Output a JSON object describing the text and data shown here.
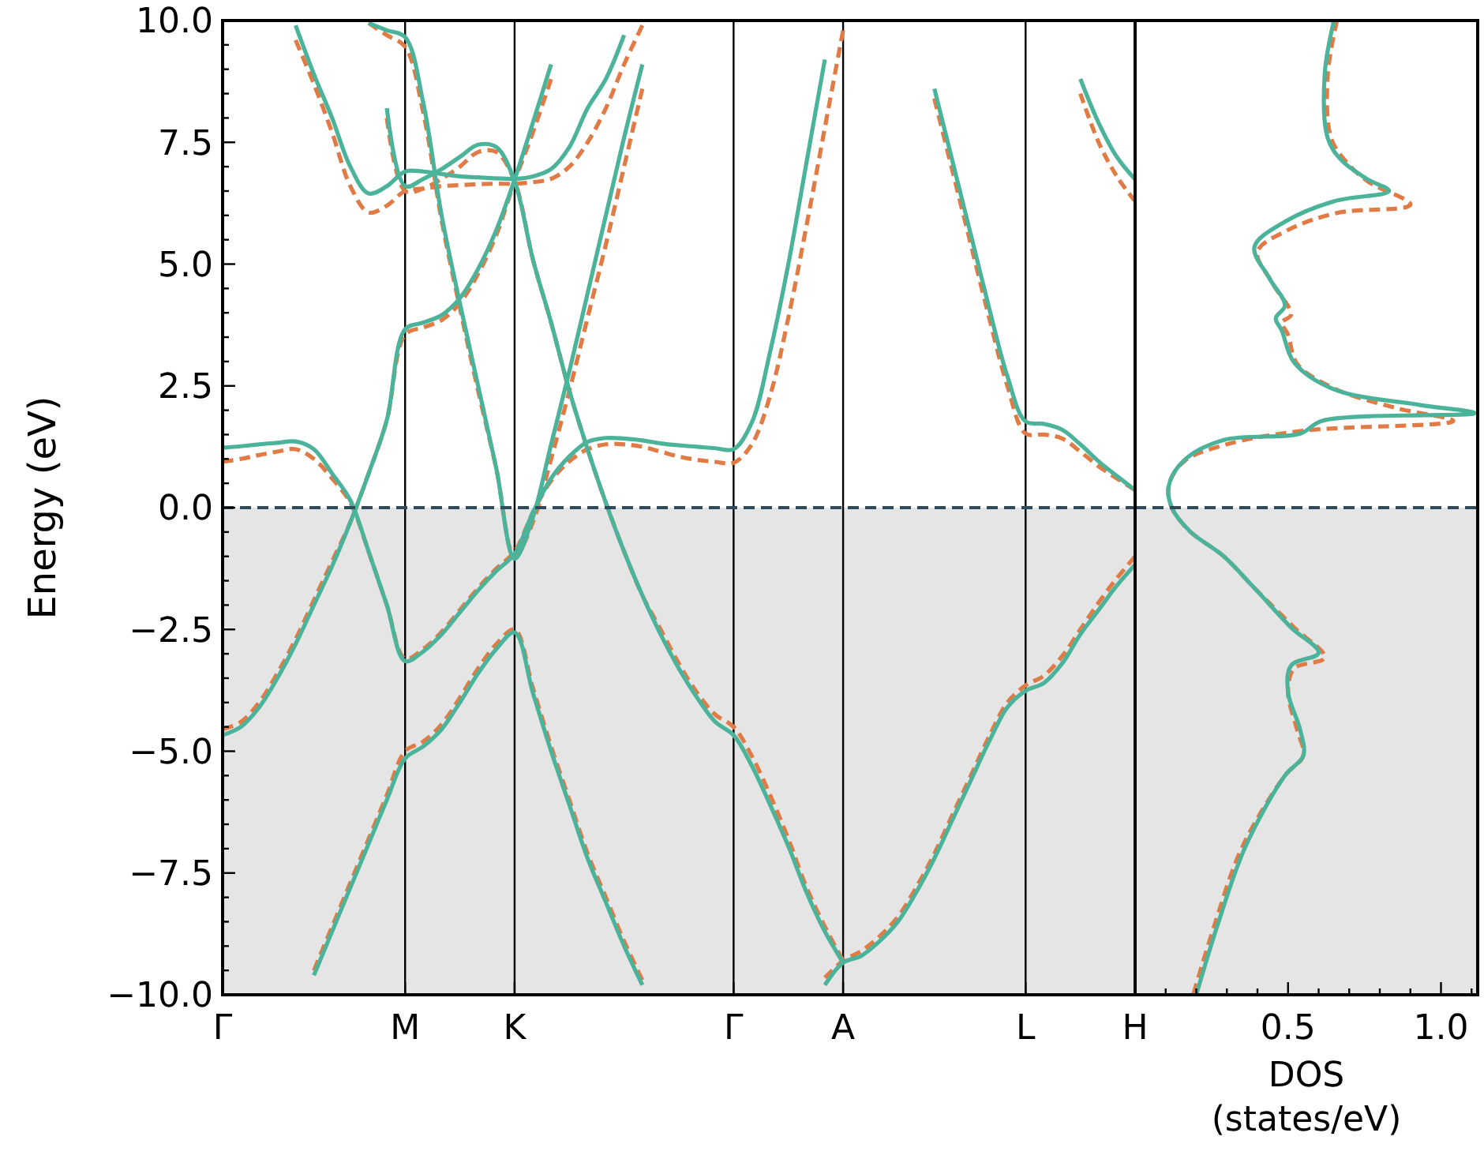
{
  "chart_data": [
    {
      "type": "line",
      "ylabel": "Energy (eV)",
      "ylim": [
        -10,
        10
      ],
      "categories": [
        "Γ",
        null,
        null,
        null,
        null,
        null,
        null,
        null,
        null,
        null,
        "M",
        null,
        null,
        null,
        null,
        null,
        "K",
        null,
        null,
        null,
        null,
        null,
        null,
        null,
        null,
        null,
        null,
        null,
        "Γ",
        null,
        null,
        null,
        null,
        null,
        "A",
        null,
        null,
        null,
        null,
        null,
        null,
        null,
        null,
        null,
        "L",
        null,
        null,
        null,
        null,
        null,
        "H"
      ],
      "yticks": [
        {
          "value": -10,
          "label": "−10.0"
        },
        {
          "value": -9.5,
          "label": null
        },
        {
          "value": -9,
          "label": null
        },
        {
          "value": -8.5,
          "label": null
        },
        {
          "value": -8,
          "label": null
        },
        {
          "value": -7.5,
          "label": "−7.5"
        },
        {
          "value": -7,
          "label": null
        },
        {
          "value": -6.5,
          "label": null
        },
        {
          "value": -6,
          "label": null
        },
        {
          "value": -5.5,
          "label": null
        },
        {
          "value": -5,
          "label": "−5.0"
        },
        {
          "value": -4.5,
          "label": null
        },
        {
          "value": -4,
          "label": null
        },
        {
          "value": -3.5,
          "label": null
        },
        {
          "value": -3,
          "label": null
        },
        {
          "value": -2.5,
          "label": "−2.5"
        },
        {
          "value": -2,
          "label": null
        },
        {
          "value": -1.5,
          "label": null
        },
        {
          "value": -1,
          "label": null
        },
        {
          "value": -0.5,
          "label": null
        },
        {
          "value": 0,
          "label": "0.0"
        },
        {
          "value": 0.5,
          "label": null
        },
        {
          "value": 1,
          "label": null
        },
        {
          "value": 1.5,
          "label": null
        },
        {
          "value": 2,
          "label": null
        },
        {
          "value": 2.5,
          "label": "2.5"
        },
        {
          "value": 3,
          "label": null
        },
        {
          "value": 3.5,
          "label": null
        },
        {
          "value": 4,
          "label": null
        },
        {
          "value": 4.5,
          "label": null
        },
        {
          "value": 5,
          "label": "5.0"
        },
        {
          "value": 5.5,
          "label": null
        },
        {
          "value": 6,
          "label": null
        },
        {
          "value": 6.5,
          "label": null
        },
        {
          "value": 7,
          "label": null
        },
        {
          "value": 7.5,
          "label": "7.5"
        },
        {
          "value": 8,
          "label": null
        },
        {
          "value": 8.5,
          "label": null
        },
        {
          "value": 9,
          "label": null
        },
        {
          "value": 9.5,
          "label": null
        },
        {
          "value": 10,
          "label": "10.0"
        }
      ],
      "grid": "x",
      "ref_lines": [
        {
          "axis": "y",
          "value": 0,
          "color": "#2e4a5c",
          "line_style": "dashed"
        }
      ],
      "bands": [
        {
          "axis": "y",
          "from": -10,
          "to": 0,
          "color": "#e5e5e5"
        }
      ],
      "series": [
        {
          "color": "#e07b45",
          "line_style": "dashed",
          "values": [
            -4.55,
            -4.4,
            -4.0,
            -3.4,
            -2.7,
            -1.9,
            -1.1,
            -0.3,
            0.7,
            1.8,
            3.55,
            3.7,
            3.85,
            4.2,
            4.8,
            5.6,
            6.7,
            7.7,
            8.8,
            null,
            null,
            null,
            null,
            null,
            null,
            null,
            null,
            null,
            null,
            null,
            null,
            null,
            null,
            null,
            null,
            null,
            null,
            null,
            null,
            null,
            null,
            null,
            null,
            null,
            null,
            null,
            null,
            null,
            null,
            null,
            null
          ]
        },
        {
          "color": "#e07b45",
          "line_style": "dashed",
          "values": [
            0.94,
            1.0,
            1.08,
            1.15,
            1.2,
            1.0,
            0.6,
            0.1,
            -0.9,
            -2.0,
            -3.1,
            -2.9,
            -2.55,
            -2.1,
            -1.65,
            -1.25,
            -0.9,
            -0.1,
            0.55,
            0.95,
            1.2,
            1.3,
            1.3,
            1.25,
            1.15,
            1.05,
            0.98,
            0.94,
            0.92,
            1.3,
            2.3,
            3.9,
            5.8,
            7.8,
            9.8,
            null,
            null,
            null,
            null,
            null,
            null,
            null,
            null,
            null,
            null,
            null,
            null,
            null,
            null,
            null,
            null
          ]
        },
        {
          "color": "#e07b45",
          "line_style": "dashed",
          "values": [
            null,
            null,
            null,
            null,
            9.6,
            8.7,
            7.7,
            6.6,
            6.06,
            6.2,
            6.5,
            6.55,
            6.6,
            6.62,
            6.64,
            6.65,
            6.65,
            6.68,
            6.75,
            7.0,
            7.5,
            8.2,
            9.1,
            9.9,
            null,
            null,
            null,
            null,
            null,
            null,
            null,
            null,
            null,
            null,
            null,
            null,
            null,
            null,
            null,
            null,
            null,
            null,
            null,
            null,
            null,
            null,
            null,
            null,
            null,
            null,
            null
          ]
        },
        {
          "color": "#e07b45",
          "line_style": "dashed",
          "values": [
            null,
            null,
            null,
            null,
            null,
            null,
            null,
            null,
            9.95,
            9.7,
            9.46,
            8.1,
            5.9,
            4.1,
            2.4,
            0.8,
            -1.0,
            -0.3,
            1.0,
            2.4,
            3.9,
            5.4,
            7.0,
            8.6,
            null,
            null,
            null,
            null,
            null,
            null,
            null,
            null,
            null,
            null,
            null,
            null,
            null,
            null,
            null,
            null,
            null,
            null,
            null,
            null,
            null,
            null,
            null,
            null,
            null,
            null,
            null
          ]
        },
        {
          "color": "#e07b45",
          "line_style": "dashed",
          "values": [
            null,
            null,
            null,
            null,
            null,
            null,
            null,
            null,
            null,
            8.0,
            6.5,
            6.55,
            6.75,
            7.0,
            7.3,
            7.3,
            6.7,
            5.1,
            3.8,
            2.4,
            1.2,
            0.1,
            -0.9,
            -1.8,
            -2.5,
            -3.2,
            -3.8,
            -4.25,
            -4.5,
            -5.1,
            -5.9,
            -6.8,
            -7.8,
            -8.6,
            -9.3,
            null,
            null,
            null,
            null,
            null,
            null,
            null,
            null,
            null,
            null,
            null,
            null,
            null,
            null,
            null,
            null
          ]
        },
        {
          "color": "#e07b45",
          "line_style": "dashed",
          "values": [
            null,
            null,
            null,
            null,
            null,
            -9.5,
            -8.6,
            -7.7,
            -6.8,
            -5.9,
            -5.0,
            -4.8,
            -4.45,
            -3.9,
            -3.3,
            -2.8,
            -2.5,
            -3.7,
            -4.9,
            -6.0,
            -7.1,
            -8.0,
            -8.9,
            -9.7,
            null,
            null,
            null,
            null,
            null,
            null,
            null,
            null,
            null,
            null,
            null,
            null,
            null,
            null,
            null,
            null,
            null,
            null,
            null,
            null,
            null,
            null,
            null,
            null,
            null,
            null,
            null
          ]
        },
        {
          "color": "#e07b45",
          "line_style": "dashed",
          "values": [
            null,
            null,
            null,
            null,
            null,
            null,
            null,
            null,
            null,
            null,
            null,
            null,
            null,
            null,
            null,
            null,
            null,
            null,
            null,
            null,
            null,
            null,
            null,
            null,
            null,
            null,
            null,
            null,
            null,
            null,
            null,
            null,
            null,
            -9.65,
            -9.3,
            -9.1,
            -8.8,
            -8.4,
            -7.8,
            -7.1,
            -6.3,
            -5.5,
            -4.7,
            -4.0,
            -3.65,
            -3.45,
            -3.05,
            -2.5,
            -1.95,
            -1.45,
            -1.0
          ]
        },
        {
          "color": "#e07b45",
          "line_style": "dashed",
          "values": [
            null,
            null,
            null,
            null,
            null,
            null,
            null,
            null,
            null,
            null,
            null,
            null,
            null,
            null,
            null,
            null,
            null,
            null,
            null,
            null,
            null,
            null,
            null,
            null,
            null,
            null,
            null,
            null,
            null,
            null,
            null,
            null,
            null,
            null,
            null,
            null,
            null,
            null,
            null,
            8.4,
            6.9,
            5.4,
            3.9,
            2.5,
            1.52,
            1.5,
            1.42,
            1.15,
            0.85,
            0.6,
            0.36
          ]
        },
        {
          "color": "#e07b45",
          "line_style": "dashed",
          "values": [
            null,
            null,
            null,
            null,
            null,
            null,
            null,
            null,
            null,
            null,
            null,
            null,
            null,
            null,
            null,
            null,
            null,
            null,
            null,
            null,
            null,
            null,
            null,
            null,
            null,
            null,
            null,
            null,
            null,
            null,
            null,
            null,
            null,
            null,
            null,
            null,
            null,
            null,
            null,
            null,
            null,
            null,
            null,
            null,
            null,
            null,
            null,
            8.5,
            7.5,
            6.8,
            6.29
          ]
        },
        {
          "color": "#4cb39b",
          "line_style": "solid",
          "values": [
            -4.67,
            -4.5,
            -4.1,
            -3.5,
            -2.8,
            -2.0,
            -1.2,
            -0.3,
            0.7,
            1.8,
            3.66,
            3.8,
            3.95,
            4.3,
            4.9,
            5.7,
            6.74,
            7.9,
            9.1,
            null,
            null,
            null,
            null,
            null,
            null,
            null,
            null,
            null,
            null,
            null,
            null,
            null,
            null,
            null,
            null,
            null,
            null,
            null,
            null,
            null,
            null,
            null,
            null,
            null,
            null,
            null,
            null,
            null,
            null,
            null,
            null
          ]
        },
        {
          "color": "#4cb39b",
          "line_style": "solid",
          "values": [
            1.23,
            1.26,
            1.3,
            1.33,
            1.36,
            1.2,
            0.7,
            0.15,
            -0.9,
            -2.0,
            -3.15,
            -2.95,
            -2.6,
            -2.15,
            -1.7,
            -1.3,
            -0.95,
            -0.1,
            0.6,
            1.05,
            1.35,
            1.43,
            1.42,
            1.38,
            1.32,
            1.28,
            1.25,
            1.22,
            1.2,
            1.75,
            3.2,
            5.0,
            7.1,
            9.2,
            null,
            null,
            null,
            null,
            null,
            null,
            null,
            null,
            null,
            null,
            null,
            null,
            null,
            null,
            null,
            null,
            null
          ]
        },
        {
          "color": "#4cb39b",
          "line_style": "solid",
          "values": [
            null,
            null,
            null,
            null,
            9.9,
            8.9,
            8.0,
            7.0,
            6.45,
            6.6,
            6.9,
            6.9,
            6.85,
            6.8,
            6.78,
            6.76,
            6.75,
            6.8,
            6.95,
            7.4,
            8.2,
            8.8,
            9.7,
            null,
            null,
            null,
            null,
            null,
            null,
            null,
            null,
            null,
            null,
            null,
            null,
            null,
            null,
            null,
            null,
            null,
            null,
            null,
            null,
            null,
            null,
            null,
            null,
            null,
            null,
            null,
            null
          ]
        },
        {
          "color": "#4cb39b",
          "line_style": "solid",
          "values": [
            null,
            null,
            null,
            null,
            null,
            null,
            null,
            null,
            9.95,
            9.8,
            9.66,
            8.3,
            6.0,
            4.2,
            2.5,
            0.8,
            -1.05,
            -0.2,
            1.3,
            2.8,
            4.4,
            6.0,
            7.6,
            9.1,
            null,
            null,
            null,
            null,
            null,
            null,
            null,
            null,
            null,
            null,
            null,
            null,
            null,
            null,
            null,
            null,
            null,
            null,
            null,
            null,
            null,
            null,
            null,
            null,
            null,
            null,
            null
          ]
        },
        {
          "color": "#4cb39b",
          "line_style": "solid",
          "values": [
            null,
            null,
            null,
            null,
            null,
            null,
            null,
            null,
            null,
            8.2,
            6.6,
            6.75,
            6.95,
            7.2,
            7.45,
            7.4,
            6.7,
            5.1,
            3.8,
            2.4,
            1.2,
            0.1,
            -0.9,
            -1.8,
            -2.6,
            -3.3,
            -3.9,
            -4.4,
            -4.67,
            -5.3,
            -6.1,
            -6.95,
            -7.9,
            -8.7,
            -9.34,
            null,
            null,
            null,
            null,
            null,
            null,
            null,
            null,
            null,
            null,
            null,
            null,
            null,
            null,
            null,
            null
          ]
        },
        {
          "color": "#4cb39b",
          "line_style": "solid",
          "values": [
            null,
            null,
            null,
            null,
            null,
            -9.6,
            -8.7,
            -7.8,
            -6.9,
            -6.0,
            -5.15,
            -4.9,
            -4.55,
            -4.0,
            -3.4,
            -2.9,
            -2.56,
            -3.8,
            -5.0,
            -6.1,
            -7.2,
            -8.1,
            -9.0,
            -9.8,
            null,
            null,
            null,
            null,
            null,
            null,
            null,
            null,
            null,
            null,
            null,
            null,
            null,
            null,
            null,
            null,
            null,
            null,
            null,
            null,
            null,
            null,
            null,
            null,
            null,
            null,
            null
          ]
        },
        {
          "color": "#4cb39b",
          "line_style": "solid",
          "values": [
            null,
            null,
            null,
            null,
            null,
            null,
            null,
            null,
            null,
            null,
            null,
            null,
            null,
            null,
            null,
            null,
            null,
            null,
            null,
            null,
            null,
            null,
            null,
            null,
            null,
            null,
            null,
            null,
            null,
            null,
            null,
            null,
            null,
            -9.8,
            -9.34,
            -9.2,
            -8.9,
            -8.5,
            -7.9,
            -7.2,
            -6.4,
            -5.6,
            -4.8,
            -4.1,
            -3.76,
            -3.6,
            -3.2,
            -2.6,
            -2.1,
            -1.6,
            -1.17
          ]
        },
        {
          "color": "#4cb39b",
          "line_style": "solid",
          "values": [
            null,
            null,
            null,
            null,
            null,
            null,
            null,
            null,
            null,
            null,
            null,
            null,
            null,
            null,
            null,
            null,
            null,
            null,
            null,
            null,
            null,
            null,
            null,
            null,
            null,
            null,
            null,
            null,
            null,
            null,
            null,
            null,
            null,
            null,
            null,
            null,
            null,
            null,
            null,
            8.6,
            7.1,
            5.6,
            4.1,
            2.7,
            1.77,
            1.72,
            1.6,
            1.3,
            0.95,
            0.65,
            0.36
          ]
        },
        {
          "color": "#4cb39b",
          "line_style": "solid",
          "values": [
            null,
            null,
            null,
            null,
            null,
            null,
            null,
            null,
            null,
            null,
            null,
            null,
            null,
            null,
            null,
            null,
            null,
            null,
            null,
            null,
            null,
            null,
            null,
            null,
            null,
            null,
            null,
            null,
            null,
            null,
            null,
            null,
            null,
            null,
            null,
            null,
            null,
            null,
            null,
            null,
            null,
            null,
            null,
            null,
            null,
            null,
            null,
            8.8,
            7.9,
            7.2,
            6.74
          ]
        }
      ]
    },
    {
      "type": "line",
      "xlabel": "DOS (states/eV)",
      "xlim": [
        0,
        1.12
      ],
      "ylim": [
        -10,
        10
      ],
      "tick_labels": "x",
      "xticks": [
        {
          "value": 0.1,
          "label": null
        },
        {
          "value": 0.2,
          "label": null
        },
        {
          "value": 0.3,
          "label": null
        },
        {
          "value": 0.4,
          "label": null
        },
        {
          "value": 0.5,
          "label": "0.5"
        },
        {
          "value": 0.6,
          "label": null
        },
        {
          "value": 0.7,
          "label": null
        },
        {
          "value": 0.8,
          "label": null
        },
        {
          "value": 0.9,
          "label": null
        },
        {
          "value": 1,
          "label": "1.0"
        },
        {
          "value": 1.1,
          "label": null
        }
      ],
      "ref_lines": [
        {
          "axis": "y",
          "value": 0,
          "color": "#2e4a5c",
          "line_style": "dashed"
        }
      ],
      "bands": [
        {
          "axis": "y",
          "from": -10,
          "to": 0,
          "color": "#e5e5e5"
        }
      ],
      "series": [
        {
          "color": "#e07b45",
          "line_style": "dashed",
          "x": [
            0.66,
            0.63,
            0.64,
            0.69,
            0.76,
            0.9,
            0.66,
            0.5,
            0.4,
            0.45,
            0.51,
            0.48,
            0.5,
            0.53,
            0.65,
            0.85,
            1.04,
            0.55,
            0.3,
            0.16,
            0.11,
            0.12,
            0.18,
            0.29,
            0.39,
            0.52,
            0.62,
            0.52,
            0.5,
            0.53,
            0.55,
            0.49,
            0.35,
            0.26,
            0.19
          ],
          "values": [
            10,
            8.9,
            7.6,
            7.1,
            6.7,
            6.22,
            6.05,
            5.7,
            5.25,
            4.6,
            3.96,
            3.8,
            3.55,
            2.95,
            2.45,
            2.05,
            1.78,
            1.58,
            1.3,
            0.95,
            0.45,
            0,
            -0.49,
            -1,
            -1.65,
            -2.46,
            -3.08,
            -3.3,
            -3.79,
            -4.57,
            -5.09,
            -5.5,
            -6.97,
            -8.56,
            -10
          ]
        },
        {
          "color": "#4cb39b",
          "line_style": "solid",
          "x": [
            0.65,
            0.62,
            0.63,
            0.675,
            0.76,
            0.83,
            0.65,
            0.49,
            0.39,
            0.44,
            0.49,
            0.46,
            0.48,
            0.52,
            0.65,
            0.93,
            1.11,
            0.61,
            0.54,
            0.29,
            0.16,
            0.11,
            0.12,
            0.18,
            0.29,
            0.39,
            0.51,
            0.6,
            0.51,
            0.5,
            0.54,
            0.55,
            0.49,
            0.36,
            0.27,
            0.2
          ],
          "values": [
            10,
            8.9,
            7.58,
            7.13,
            6.74,
            6.5,
            6.29,
            5.87,
            5.35,
            4.7,
            4.15,
            3.89,
            3.63,
            2.98,
            2.43,
            2.11,
            1.94,
            1.78,
            1.52,
            1.39,
            0.97,
            0.45,
            0,
            -0.49,
            -1,
            -1.65,
            -2.46,
            -2.98,
            -3.24,
            -3.79,
            -4.57,
            -5.09,
            -5.5,
            -6.97,
            -8.56,
            -10
          ]
        }
      ]
    }
  ]
}
